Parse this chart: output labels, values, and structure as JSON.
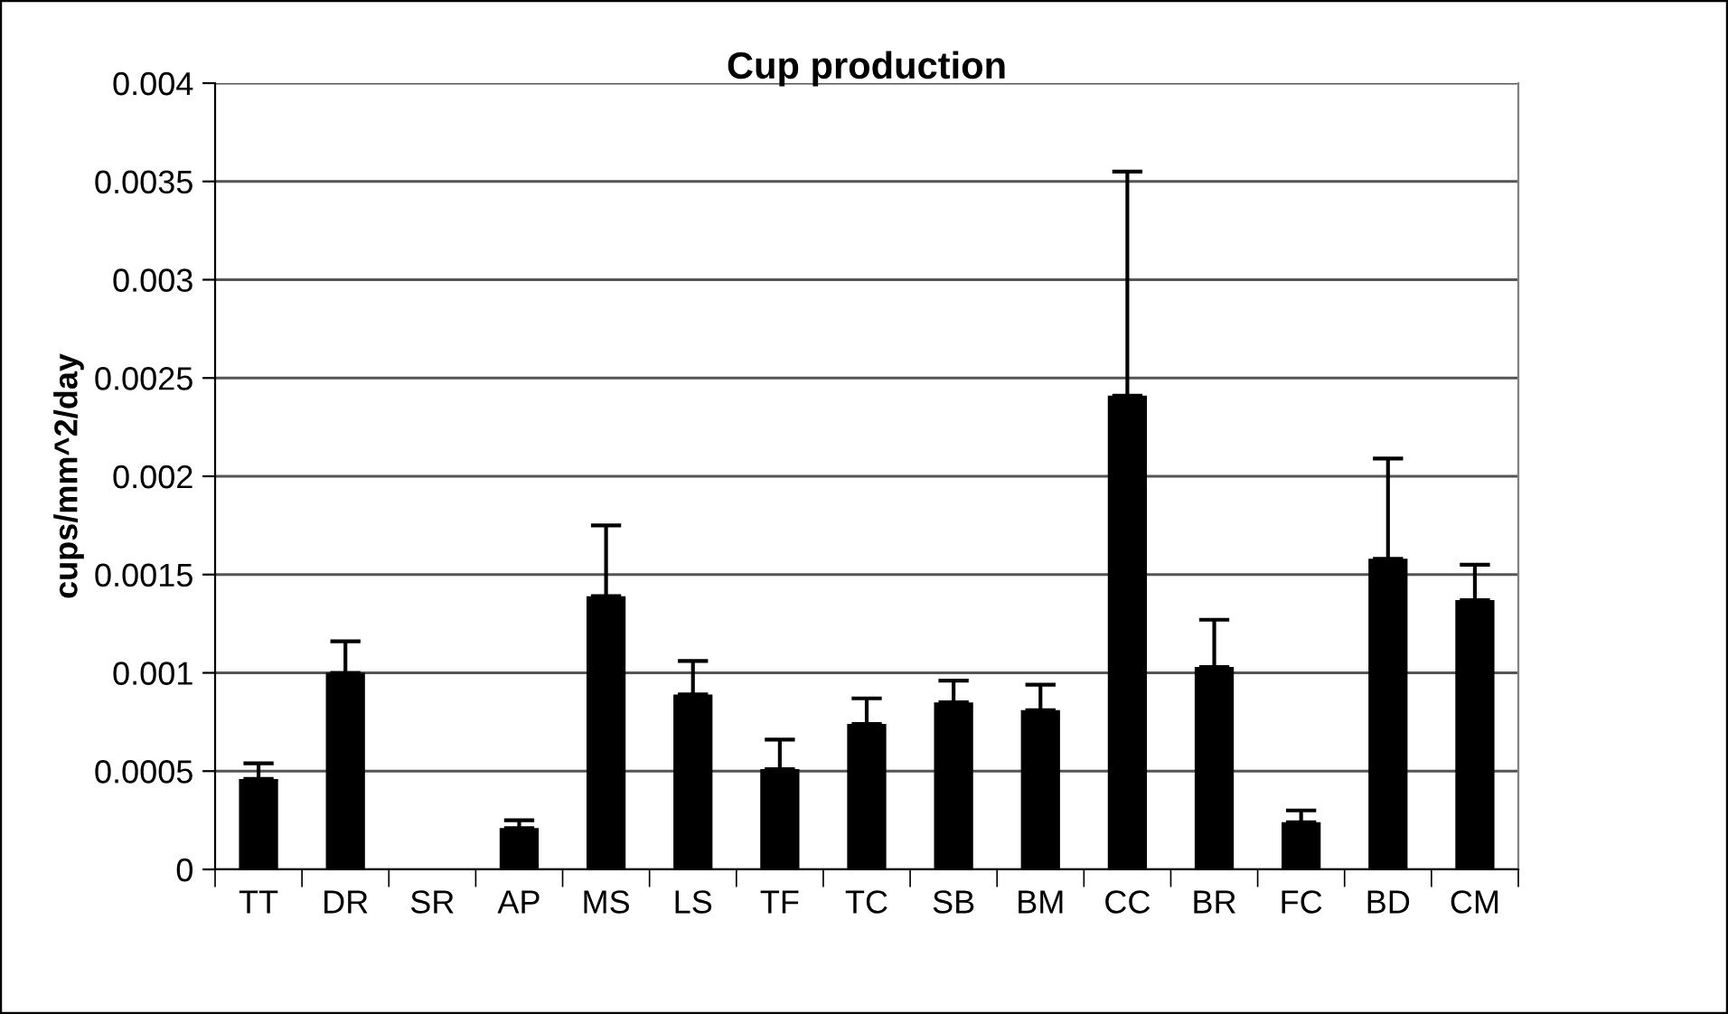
{
  "chart_data": {
    "type": "bar",
    "title": "Cup production",
    "ylabel": "cups/mm^2/day",
    "categories": [
      "TT",
      "DR",
      "SR",
      "AP",
      "MS",
      "LS",
      "TF",
      "TC",
      "SB",
      "BM",
      "CC",
      "BR",
      "FC",
      "BD",
      "CM"
    ],
    "values": [
      0.00046,
      0.001,
      0,
      0.00021,
      0.00139,
      0.00089,
      0.00051,
      0.00074,
      0.00085,
      0.00081,
      0.00241,
      0.00103,
      0.00024,
      0.00158,
      0.00137
    ],
    "errors": [
      [
        0.00046,
        0.00054
      ],
      [
        0.001,
        0.00116
      ],
      null,
      [
        0.00021,
        0.00025
      ],
      [
        0.00139,
        0.00175
      ],
      [
        0.00089,
        0.00106
      ],
      [
        0.00051,
        0.00066
      ],
      [
        0.00074,
        0.00087
      ],
      [
        0.00085,
        0.00096
      ],
      [
        0.00081,
        0.00094
      ],
      [
        0.00241,
        0.00355
      ],
      [
        0.00103,
        0.00127
      ],
      [
        0.00024,
        0.0003
      ],
      [
        0.00158,
        0.00209
      ],
      [
        0.00137,
        0.00155
      ]
    ],
    "color": "#000000",
    "ylim": [
      0,
      0.004
    ],
    "yticks": [
      0,
      0.0005,
      0.001,
      0.0015,
      0.002,
      0.0025,
      0.003,
      0.0035,
      0.004
    ],
    "grid": "y",
    "legend": false
  }
}
